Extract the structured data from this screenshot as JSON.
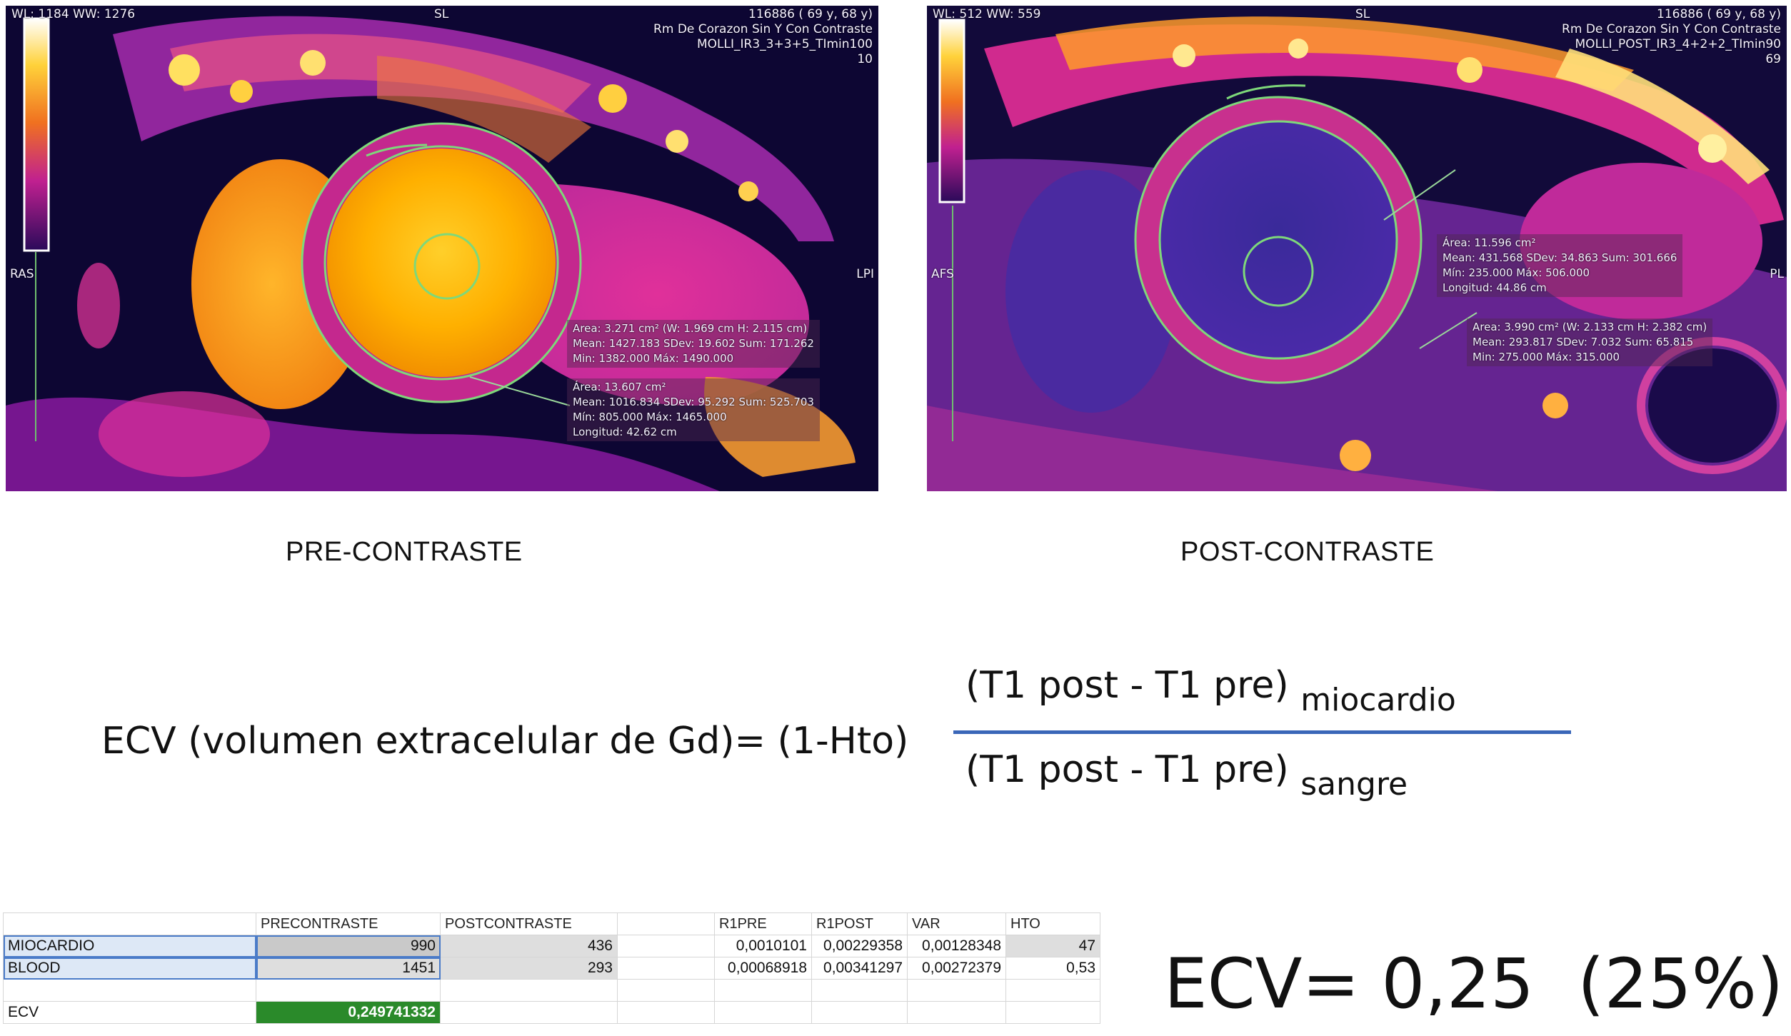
{
  "panels": {
    "pre": {
      "top_left": "WL: 1184 WW: 1276",
      "top_center": "SL",
      "header_lines": [
        "116886 ( 69 y, 68 y)",
        "Rm De Corazon Sin Y Con Contraste",
        "MOLLI_IR3_3+3+5_TImin100",
        "10"
      ],
      "left_label": "RAS",
      "right_label": "LPI",
      "measure_1": [
        "Area: 3.271 cm² (W: 1.969 cm H: 2.115 cm)",
        "Mean: 1427.183   SDev: 19.602   Sum: 171.262",
        "Min: 1382.000   Máx: 1490.000"
      ],
      "measure_2": [
        "Área: 13.607 cm²",
        "Mean: 1016.834   SDev: 95.292   Sum: 525.703",
        "Mín: 805.000   Máx: 1465.000",
        "Longitud: 42.62 cm"
      ],
      "caption": "PRE-CONTRASTE"
    },
    "post": {
      "top_left": "WL: 512 WW: 559",
      "top_center": "SL",
      "header_lines": [
        "116886 ( 69 y, 68 y)",
        "Rm De Corazon Sin Y Con Contraste",
        "MOLLI_POST_IR3_4+2+2_TImin90",
        "69"
      ],
      "left_label": "AFS",
      "right_label": "PL",
      "measure_1": [
        "Área: 11.596 cm²",
        "Mean: 431.568   SDev: 34.863   Sum: 301.666",
        "Mín: 235.000   Máx: 506.000",
        "Longitud: 44.86 cm"
      ],
      "measure_2": [
        "Area: 3.990 cm² (W: 2.133 cm H: 2.382 cm)",
        "Mean: 293.817   SDev: 7.032   Sum: 65.815",
        "Min: 275.000   Máx: 315.000"
      ],
      "caption": "POST-CONTRASTE"
    }
  },
  "formula": {
    "lhs": "ECV (volumen extracelular de Gd)=  (1-Hto)",
    "numerator": "(T1 post  - T1 pre)",
    "numerator_sub": "miocardio",
    "denominator": "(T1 post  - T1 pre)",
    "denominator_sub": "sangre"
  },
  "sheet": {
    "headers": [
      "",
      "PRECONTRASTE",
      "POSTCONTRASTE",
      "",
      "R1PRE",
      "R1POST",
      "VAR",
      "HTO"
    ],
    "rows": [
      [
        "MIOCARDIO",
        "990",
        "436",
        "",
        "0,0010101",
        "0,00229358",
        "0,00128348",
        "47"
      ],
      [
        "BLOOD",
        "1451",
        "293",
        "",
        "0,00068918",
        "0,00341297",
        "0,00272379",
        "0,53"
      ],
      [
        "",
        "",
        "",
        "",
        "",
        "",
        "",
        ""
      ],
      [
        "ECV",
        "0,249741332",
        "",
        "",
        "",
        "",
        "",
        ""
      ]
    ]
  },
  "result": "ECV= 0,25  (25%)"
}
